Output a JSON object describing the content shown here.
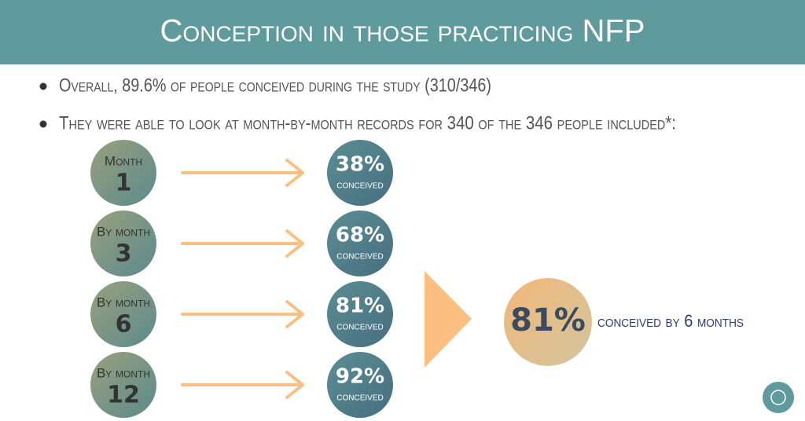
{
  "header": {
    "title": "Conception in those practicing NFP"
  },
  "bullets": [
    "Overall, 89.6% of people conceived during the study (310/346)",
    "They were able to look at month-by-month records for 340 of the 346 people included*:"
  ],
  "rows": [
    {
      "label": "Month",
      "number": "1",
      "percent": "38%",
      "caption": "conceived"
    },
    {
      "label": "By month",
      "number": "3",
      "percent": "68%",
      "caption": "conceived"
    },
    {
      "label": "By month",
      "number": "6",
      "percent": "81%",
      "caption": "conceived"
    },
    {
      "label": "By month",
      "number": "12",
      "percent": "92%",
      "caption": "conceived"
    }
  ],
  "summary": {
    "percent": "81%",
    "caption": "conceived by 6 months"
  }
}
